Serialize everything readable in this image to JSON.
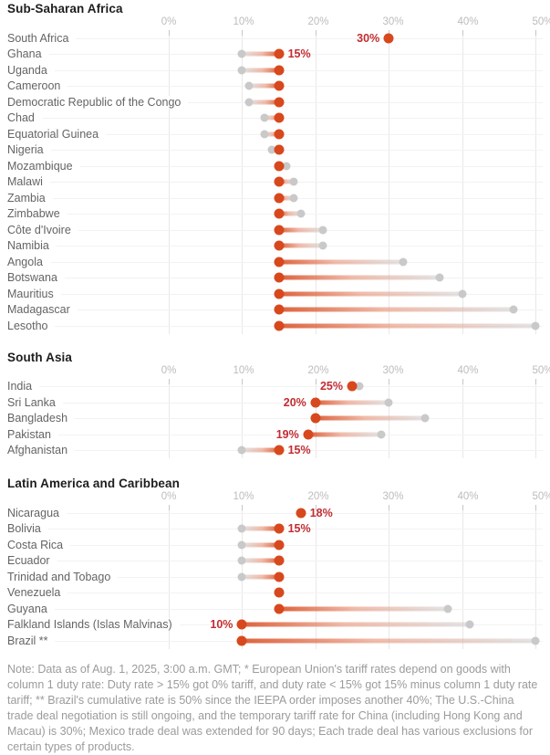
{
  "colors": {
    "new_dot": "#d8481d",
    "old_dot": "#c9c9c9",
    "value_label": "#c22d32",
    "grid": "#e8e8e8",
    "tick": "#c6c6c6",
    "row_line": "#f2f2f2",
    "title": "#1d1d1d",
    "country": "#646464",
    "axis_label": "#bcbcbc",
    "note": "#9b9b9b"
  },
  "note": "Note: Data as of Aug. 1, 2025, 3:00 a.m. GMT; * European Union's tariff rates depend on goods with column 1 duty rate: Duty rate > 15% got 0% tariff, and duty rate < 15% got 15% minus column 1 duty rate tariff; ** Brazil's cumulative rate is 50% since the IEEPA order imposes another 40%; The U.S.-China trade deal negotiation is still ongoing, and the temporary tariff rate for China (including Hong Kong and Macau) is 30%; Mexico trade deal was extended for 90 days; Each trade deal has various exclusions for certain types of products.",
  "chart_data": [
    {
      "type": "dumbbell",
      "title": "Sub-Saharan Africa",
      "x_ticks": [
        "0%",
        "10%",
        "20%",
        "30%",
        "40%",
        "50%"
      ],
      "x_min": 0,
      "x_max": 50,
      "unit": "%",
      "rows": [
        {
          "country": "South Africa",
          "new_rate": 30,
          "previous_rate": 30,
          "value_label": "30%",
          "label_side": "left"
        },
        {
          "country": "Ghana",
          "new_rate": 15,
          "previous_rate": 10,
          "value_label": "15%",
          "label_side": "right"
        },
        {
          "country": "Uganda",
          "new_rate": 15,
          "previous_rate": 10
        },
        {
          "country": "Cameroon",
          "new_rate": 15,
          "previous_rate": 11
        },
        {
          "country": "Democratic Republic of the Congo",
          "new_rate": 15,
          "previous_rate": 11
        },
        {
          "country": "Chad",
          "new_rate": 15,
          "previous_rate": 13
        },
        {
          "country": "Equatorial Guinea",
          "new_rate": 15,
          "previous_rate": 13
        },
        {
          "country": "Nigeria",
          "new_rate": 15,
          "previous_rate": 14
        },
        {
          "country": "Mozambique",
          "new_rate": 15,
          "previous_rate": 16
        },
        {
          "country": "Malawi",
          "new_rate": 15,
          "previous_rate": 17
        },
        {
          "country": "Zambia",
          "new_rate": 15,
          "previous_rate": 17
        },
        {
          "country": "Zimbabwe",
          "new_rate": 15,
          "previous_rate": 18
        },
        {
          "country": "Côte d'Ivoire",
          "new_rate": 15,
          "previous_rate": 21
        },
        {
          "country": "Namibia",
          "new_rate": 15,
          "previous_rate": 21
        },
        {
          "country": "Angola",
          "new_rate": 15,
          "previous_rate": 32
        },
        {
          "country": "Botswana",
          "new_rate": 15,
          "previous_rate": 37
        },
        {
          "country": "Mauritius",
          "new_rate": 15,
          "previous_rate": 40
        },
        {
          "country": "Madagascar",
          "new_rate": 15,
          "previous_rate": 47
        },
        {
          "country": "Lesotho",
          "new_rate": 15,
          "previous_rate": 50
        }
      ]
    },
    {
      "type": "dumbbell",
      "title": "South Asia",
      "x_ticks": [
        "0%",
        "10%",
        "20%",
        "30%",
        "40%",
        "50%"
      ],
      "x_min": 0,
      "x_max": 50,
      "unit": "%",
      "rows": [
        {
          "country": "India",
          "new_rate": 25,
          "previous_rate": 26,
          "value_label": "25%",
          "label_side": "left"
        },
        {
          "country": "Sri Lanka",
          "new_rate": 20,
          "previous_rate": 30,
          "value_label": "20%",
          "label_side": "left"
        },
        {
          "country": "Bangladesh",
          "new_rate": 20,
          "previous_rate": 35
        },
        {
          "country": "Pakistan",
          "new_rate": 19,
          "previous_rate": 29,
          "value_label": "19%",
          "label_side": "left"
        },
        {
          "country": "Afghanistan",
          "new_rate": 15,
          "previous_rate": 10,
          "value_label": "15%",
          "label_side": "right"
        }
      ]
    },
    {
      "type": "dumbbell",
      "title": "Latin America and Caribbean",
      "x_ticks": [
        "0%",
        "10%",
        "20%",
        "30%",
        "40%",
        "50%"
      ],
      "x_min": 0,
      "x_max": 50,
      "unit": "%",
      "rows": [
        {
          "country": "Nicaragua",
          "new_rate": 18,
          "previous_rate": 18,
          "value_label": "18%",
          "label_side": "right"
        },
        {
          "country": "Bolivia",
          "new_rate": 15,
          "previous_rate": 10,
          "value_label": "15%",
          "label_side": "right"
        },
        {
          "country": "Costa Rica",
          "new_rate": 15,
          "previous_rate": 10
        },
        {
          "country": "Ecuador",
          "new_rate": 15,
          "previous_rate": 10
        },
        {
          "country": "Trinidad and Tobago",
          "new_rate": 15,
          "previous_rate": 10
        },
        {
          "country": "Venezuela",
          "new_rate": 15,
          "previous_rate": 15
        },
        {
          "country": "Guyana",
          "new_rate": 15,
          "previous_rate": 38
        },
        {
          "country": "Falkland Islands (Islas Malvinas)",
          "new_rate": 10,
          "previous_rate": 41,
          "value_label": "10%",
          "label_side": "left"
        },
        {
          "country": "Brazil **",
          "new_rate": 10,
          "previous_rate": 50
        }
      ]
    }
  ]
}
